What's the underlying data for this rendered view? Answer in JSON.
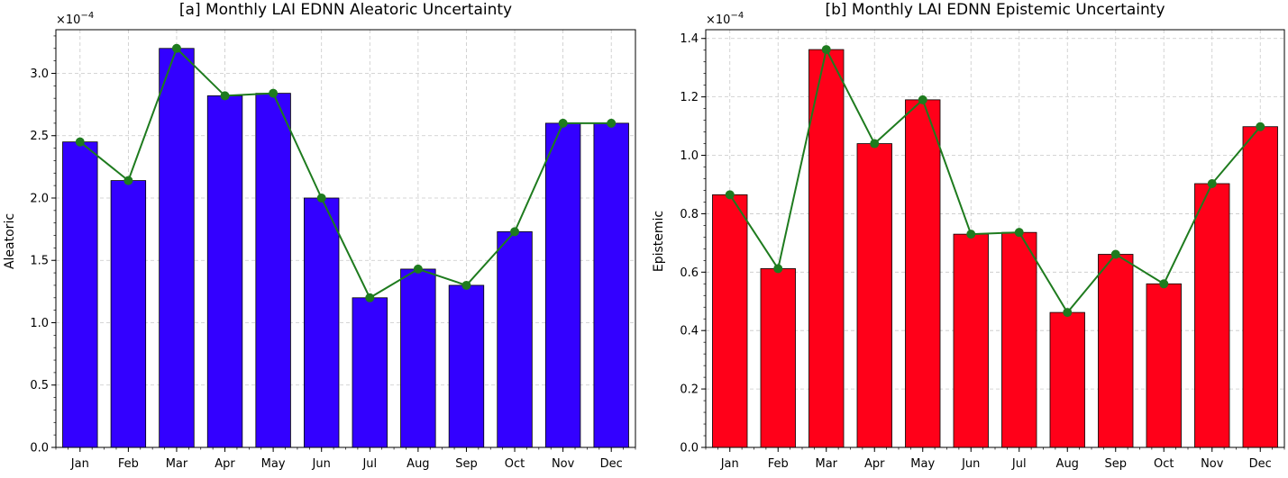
{
  "chart_data": [
    {
      "type": "bar",
      "title": "[a] Monthly LAI EDNN Aleatoric Uncertainty",
      "xlabel": "",
      "ylabel": "Aleatoric",
      "scale_label": "×10",
      "scale_exponent": "−4",
      "categories": [
        "Jan",
        "Feb",
        "Mar",
        "Apr",
        "May",
        "Jun",
        "Jul",
        "Aug",
        "Sep",
        "Oct",
        "Nov",
        "Dec"
      ],
      "values": [
        2.45,
        2.14,
        3.2,
        2.82,
        2.84,
        2.0,
        1.2,
        1.43,
        1.3,
        1.73,
        2.6,
        2.6
      ],
      "line_values": [
        2.45,
        2.14,
        3.2,
        2.82,
        2.84,
        2.0,
        1.2,
        1.43,
        1.3,
        1.73,
        2.6,
        2.6
      ],
      "ylim": [
        0,
        3.35
      ],
      "yticks": [
        0.0,
        0.5,
        1.0,
        1.5,
        2.0,
        2.5,
        3.0
      ],
      "ytick_labels": [
        "0.0",
        "0.5",
        "1.0",
        "1.5",
        "2.0",
        "2.5",
        "3.0"
      ],
      "bar_color": "#3300ff",
      "line_color": "#1e7b1e",
      "grid": true
    },
    {
      "type": "bar",
      "title": "[b] Monthly LAI EDNN Epistemic Uncertainty",
      "xlabel": "",
      "ylabel": "Epistemic",
      "scale_label": "×10",
      "scale_exponent": "−4",
      "categories": [
        "Jan",
        "Feb",
        "Mar",
        "Apr",
        "May",
        "Jun",
        "Jul",
        "Aug",
        "Sep",
        "Oct",
        "Nov",
        "Dec"
      ],
      "values": [
        0.865,
        0.612,
        1.362,
        1.04,
        1.19,
        0.73,
        0.736,
        0.462,
        0.661,
        0.56,
        0.903,
        1.098
      ],
      "line_values": [
        0.865,
        0.612,
        1.362,
        1.04,
        1.19,
        0.73,
        0.736,
        0.462,
        0.661,
        0.56,
        0.903,
        1.098
      ],
      "ylim": [
        0,
        1.43
      ],
      "yticks": [
        0.0,
        0.2,
        0.4,
        0.6,
        0.8,
        1.0,
        1.2,
        1.4
      ],
      "ytick_labels": [
        "0.0",
        "0.2",
        "0.4",
        "0.6",
        "0.8",
        "1.0",
        "1.2",
        "1.4"
      ],
      "bar_color": "#ff0019",
      "line_color": "#1e7b1e",
      "grid": true
    }
  ]
}
